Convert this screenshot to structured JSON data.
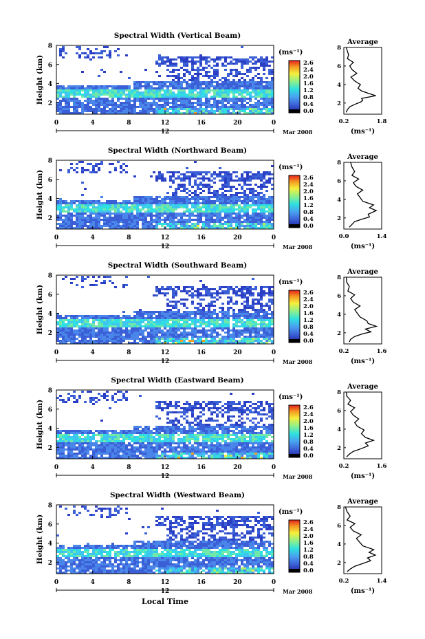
{
  "figure": {
    "xlabel": "Local Time",
    "cbar_unit": "(ms⁻¹)",
    "avg_title": "Average",
    "avg_xlabel": "(ms⁻¹)",
    "ylabel": "Height (km)",
    "date_label": "Mar 2008",
    "day_label": "12"
  },
  "chart_data": [
    {
      "type": "heatmap",
      "title": "Spectral Width (Vertical Beam)",
      "xlabel": "",
      "ylabel": "Height (km)",
      "x_ticks": [
        "0",
        "4",
        "8",
        "12",
        "16",
        "20",
        "0"
      ],
      "xlim": [
        0,
        24
      ],
      "y_ticks": [
        "2",
        "4",
        "6",
        "8"
      ],
      "ylim": [
        0.8,
        8
      ],
      "colorbar": {
        "label": "(ms⁻¹)",
        "ticks": [
          "2.6",
          "2.4",
          "2.0",
          "1.6",
          "1.2",
          "0.8",
          "0.4",
          "0.0"
        ],
        "range": [
          0.0,
          2.8
        ]
      },
      "average_profile": {
        "title": "Average",
        "xlabel": "(ms⁻¹)",
        "x_ticks": [
          "0.2",
          "1.8"
        ],
        "xlim": [
          0.2,
          1.8
        ],
        "y_ticks": [
          "2",
          "4",
          "6",
          "8"
        ],
        "ylim": [
          0.8,
          8
        ],
        "points": [
          [
            0.3,
            1.0
          ],
          [
            0.35,
            1.3
          ],
          [
            0.45,
            1.6
          ],
          [
            0.7,
            1.9
          ],
          [
            0.9,
            2.1
          ],
          [
            1.0,
            2.3
          ],
          [
            0.95,
            2.5
          ],
          [
            1.55,
            2.8
          ],
          [
            1.3,
            3.0
          ],
          [
            0.95,
            3.3
          ],
          [
            0.8,
            3.6
          ],
          [
            0.9,
            4.0
          ],
          [
            0.65,
            4.4
          ],
          [
            0.5,
            4.8
          ],
          [
            0.75,
            5.2
          ],
          [
            0.55,
            5.6
          ],
          [
            0.45,
            6.0
          ],
          [
            0.6,
            6.4
          ],
          [
            0.35,
            6.8
          ],
          [
            0.4,
            7.2
          ],
          [
            0.35,
            7.6
          ],
          [
            0.3,
            8.0
          ]
        ]
      }
    },
    {
      "type": "heatmap",
      "title": "Spectral Width (Northward Beam)",
      "xlabel": "",
      "ylabel": "Height (km)",
      "x_ticks": [
        "0",
        "4",
        "8",
        "12",
        "16",
        "20",
        "0"
      ],
      "xlim": [
        0,
        24
      ],
      "y_ticks": [
        "2",
        "4",
        "6",
        "8"
      ],
      "ylim": [
        0.8,
        8
      ],
      "colorbar": {
        "label": "(ms⁻¹)",
        "ticks": [
          "2.6",
          "2.4",
          "2.0",
          "1.6",
          "1.2",
          "0.8",
          "0.4",
          "0.0"
        ],
        "range": [
          0.0,
          2.8
        ]
      },
      "average_profile": {
        "title": "Average",
        "xlabel": "(ms⁻¹)",
        "x_ticks": [
          "0.0",
          "1.4"
        ],
        "xlim": [
          0.0,
          1.4
        ],
        "y_ticks": [
          "2",
          "4",
          "6",
          "8"
        ],
        "ylim": [
          0.8,
          8
        ],
        "points": [
          [
            0.2,
            1.0
          ],
          [
            0.3,
            1.3
          ],
          [
            0.4,
            1.6
          ],
          [
            0.7,
            1.9
          ],
          [
            0.95,
            2.1
          ],
          [
            0.9,
            2.4
          ],
          [
            1.2,
            2.8
          ],
          [
            0.95,
            3.1
          ],
          [
            1.1,
            3.4
          ],
          [
            0.7,
            3.8
          ],
          [
            0.6,
            4.2
          ],
          [
            0.5,
            4.6
          ],
          [
            0.7,
            5.0
          ],
          [
            0.45,
            5.4
          ],
          [
            0.35,
            5.8
          ],
          [
            0.55,
            6.2
          ],
          [
            0.3,
            6.6
          ],
          [
            0.4,
            7.0
          ],
          [
            0.3,
            7.5
          ],
          [
            0.25,
            8.0
          ]
        ]
      }
    },
    {
      "type": "heatmap",
      "title": "Spectral Width (Southward Beam)",
      "xlabel": "",
      "ylabel": "Height (km)",
      "x_ticks": [
        "0",
        "4",
        "8",
        "12",
        "16",
        "20",
        "0"
      ],
      "xlim": [
        0,
        24
      ],
      "y_ticks": [
        "2",
        "4",
        "6",
        "8"
      ],
      "ylim": [
        0.8,
        8
      ],
      "colorbar": {
        "label": "(ms⁻¹)",
        "ticks": [
          "2.6",
          "2.4",
          "2.0",
          "1.6",
          "1.2",
          "0.8",
          "0.4",
          "0.0"
        ],
        "range": [
          0.0,
          2.8
        ]
      },
      "average_profile": {
        "title": "Average",
        "xlabel": "(ms⁻¹)",
        "x_ticks": [
          "0.2",
          "1.6"
        ],
        "xlim": [
          0.2,
          1.6
        ],
        "y_ticks": [
          "2",
          "4",
          "6",
          "8"
        ],
        "ylim": [
          0.8,
          8
        ],
        "points": [
          [
            0.4,
            1.0
          ],
          [
            0.45,
            1.3
          ],
          [
            0.6,
            1.6
          ],
          [
            0.9,
            1.9
          ],
          [
            1.2,
            2.1
          ],
          [
            1.0,
            2.4
          ],
          [
            1.4,
            2.7
          ],
          [
            1.1,
            3.0
          ],
          [
            1.05,
            3.3
          ],
          [
            0.8,
            3.7
          ],
          [
            0.7,
            4.1
          ],
          [
            0.6,
            4.5
          ],
          [
            0.8,
            4.9
          ],
          [
            0.55,
            5.3
          ],
          [
            0.45,
            5.7
          ],
          [
            0.6,
            6.1
          ],
          [
            0.35,
            6.5
          ],
          [
            0.4,
            7.0
          ],
          [
            0.3,
            7.5
          ],
          [
            0.3,
            8.0
          ]
        ]
      }
    },
    {
      "type": "heatmap",
      "title": "Spectral Width (Eastward Beam)",
      "xlabel": "",
      "ylabel": "Height (km)",
      "x_ticks": [
        "0",
        "4",
        "8",
        "12",
        "16",
        "20",
        "0"
      ],
      "xlim": [
        0,
        24
      ],
      "y_ticks": [
        "2",
        "4",
        "6",
        "8"
      ],
      "ylim": [
        0.8,
        8
      ],
      "colorbar": {
        "label": "(ms⁻¹)",
        "ticks": [
          "2.6",
          "2.4",
          "2.0",
          "1.6",
          "1.2",
          "0.8",
          "0.4",
          "0.0"
        ],
        "range": [
          0.0,
          2.8
        ]
      },
      "average_profile": {
        "title": "Average",
        "xlabel": "(ms⁻¹)",
        "x_ticks": [
          "0.2",
          "1.6"
        ],
        "xlim": [
          0.2,
          1.6
        ],
        "y_ticks": [
          "2",
          "4",
          "6",
          "8"
        ],
        "ylim": [
          0.8,
          8
        ],
        "points": [
          [
            0.3,
            1.0
          ],
          [
            0.4,
            1.3
          ],
          [
            0.55,
            1.6
          ],
          [
            0.85,
            1.9
          ],
          [
            1.1,
            2.2
          ],
          [
            1.0,
            2.5
          ],
          [
            1.3,
            2.8
          ],
          [
            1.0,
            3.1
          ],
          [
            0.85,
            3.5
          ],
          [
            0.95,
            3.9
          ],
          [
            0.7,
            4.3
          ],
          [
            0.6,
            4.7
          ],
          [
            0.75,
            5.1
          ],
          [
            0.55,
            5.5
          ],
          [
            0.45,
            5.9
          ],
          [
            0.6,
            6.3
          ],
          [
            0.35,
            6.7
          ],
          [
            0.45,
            7.1
          ],
          [
            0.3,
            7.6
          ],
          [
            0.3,
            8.0
          ]
        ]
      }
    },
    {
      "type": "heatmap",
      "title": "Spectral Width (Westward Beam)",
      "xlabel": "Local Time",
      "ylabel": "Height (km)",
      "x_ticks": [
        "0",
        "4",
        "8",
        "12",
        "16",
        "20",
        "0"
      ],
      "xlim": [
        0,
        24
      ],
      "y_ticks": [
        "2",
        "4",
        "6",
        "8"
      ],
      "ylim": [
        0.8,
        8
      ],
      "colorbar": {
        "label": "(ms⁻¹)",
        "ticks": [
          "2.6",
          "2.4",
          "2.0",
          "1.6",
          "1.2",
          "0.8",
          "0.4",
          "0.0"
        ],
        "range": [
          0.0,
          2.8
        ]
      },
      "average_profile": {
        "title": "Average",
        "xlabel": "(ms⁻¹)",
        "x_ticks": [
          "0.2",
          "1.4"
        ],
        "xlim": [
          0.2,
          1.4
        ],
        "y_ticks": [
          "2",
          "4",
          "6",
          "8"
        ],
        "ylim": [
          0.8,
          8
        ],
        "points": [
          [
            0.3,
            1.0
          ],
          [
            0.4,
            1.3
          ],
          [
            0.55,
            1.6
          ],
          [
            0.8,
            1.9
          ],
          [
            1.05,
            2.2
          ],
          [
            0.95,
            2.5
          ],
          [
            1.2,
            2.8
          ],
          [
            1.0,
            3.1
          ],
          [
            1.15,
            3.4
          ],
          [
            0.8,
            3.8
          ],
          [
            0.7,
            4.2
          ],
          [
            0.6,
            4.6
          ],
          [
            0.75,
            5.0
          ],
          [
            0.5,
            5.4
          ],
          [
            0.4,
            5.8
          ],
          [
            0.55,
            6.2
          ],
          [
            0.3,
            6.6
          ],
          [
            0.4,
            7.0
          ],
          [
            0.3,
            7.5
          ],
          [
            0.25,
            8.0
          ]
        ]
      }
    }
  ]
}
